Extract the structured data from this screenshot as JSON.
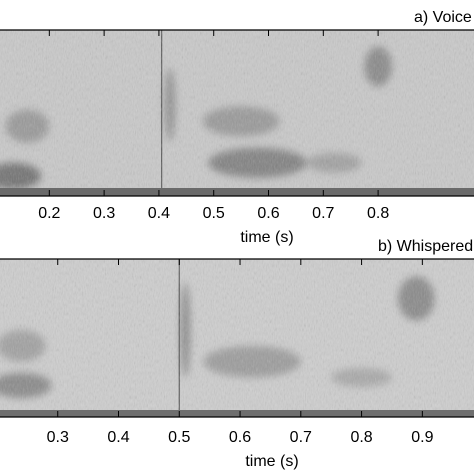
{
  "chart_data": [
    {
      "type": "heatmap",
      "title": "a) Voice",
      "xlabel": "time (s)",
      "ylabel": "",
      "xlim": [
        0.11,
        0.975
      ],
      "ticks": [
        0.2,
        0.3,
        0.4,
        0.5,
        0.6,
        0.7,
        0.8
      ],
      "tick_labels": [
        "0.2",
        "0.3",
        "0.4",
        "0.5",
        "0.6",
        "0.7",
        "0.8"
      ],
      "colormap": "grayscale",
      "events": [
        {
          "t": 0.405,
          "kind": "vertical-streak"
        }
      ],
      "energy_blobs": [
        {
          "t": 0.135,
          "f": 0.12,
          "wt": 0.05,
          "wf": 0.08,
          "v": 0.55
        },
        {
          "t": 0.16,
          "f": 0.42,
          "wt": 0.04,
          "wf": 0.1,
          "v": 0.3
        },
        {
          "t": 0.58,
          "f": 0.2,
          "wt": 0.09,
          "wf": 0.09,
          "v": 0.45
        },
        {
          "t": 0.55,
          "f": 0.45,
          "wt": 0.07,
          "wf": 0.09,
          "v": 0.3
        },
        {
          "t": 0.8,
          "f": 0.78,
          "wt": 0.025,
          "wf": 0.12,
          "v": 0.4
        },
        {
          "t": 0.72,
          "f": 0.2,
          "wt": 0.05,
          "wf": 0.06,
          "v": 0.25
        },
        {
          "t": 0.42,
          "f": 0.55,
          "wt": 0.01,
          "wf": 0.22,
          "v": 0.35
        }
      ]
    },
    {
      "type": "heatmap",
      "title": "b) Whispered",
      "xlabel": "time (s)",
      "ylabel": "",
      "xlim": [
        0.205,
        0.985
      ],
      "ticks": [
        0.3,
        0.4,
        0.5,
        0.6,
        0.7,
        0.8,
        0.9
      ],
      "tick_labels": [
        "0.3",
        "0.4",
        "0.5",
        "0.6",
        "0.7",
        "0.8",
        "0.9"
      ],
      "colormap": "grayscale",
      "events": [
        {
          "t": 0.5,
          "kind": "vertical-streak"
        }
      ],
      "energy_blobs": [
        {
          "t": 0.24,
          "f": 0.2,
          "wt": 0.05,
          "wf": 0.08,
          "v": 0.4
        },
        {
          "t": 0.24,
          "f": 0.45,
          "wt": 0.04,
          "wf": 0.1,
          "v": 0.25
        },
        {
          "t": 0.62,
          "f": 0.35,
          "wt": 0.08,
          "wf": 0.1,
          "v": 0.28
        },
        {
          "t": 0.89,
          "f": 0.75,
          "wt": 0.03,
          "wf": 0.14,
          "v": 0.4
        },
        {
          "t": 0.8,
          "f": 0.25,
          "wt": 0.05,
          "wf": 0.06,
          "v": 0.2
        },
        {
          "t": 0.51,
          "f": 0.55,
          "wt": 0.008,
          "wf": 0.3,
          "v": 0.4
        }
      ]
    }
  ]
}
